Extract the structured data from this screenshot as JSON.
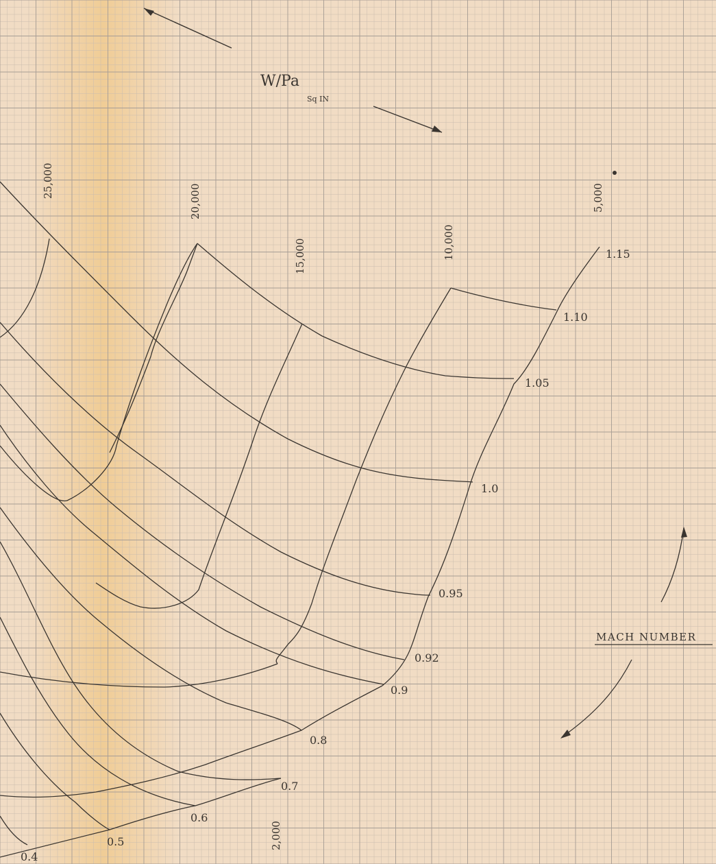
{
  "chart_data": {
    "type": "line",
    "title": "",
    "parameter_label": "W/Pa",
    "parameter_unit": "Sq IN",
    "legend_label": "MACH NUMBER",
    "wpa_values": [
      "25,000",
      "20,000",
      "15,000",
      "10,000",
      "5,000",
      "2,000"
    ],
    "mach_values": [
      "1.15",
      "1.10",
      "1.05",
      "1.0",
      "0.95",
      "0.92",
      "0.9",
      "0.8",
      "0.7",
      "0.6",
      "0.5",
      "0.4"
    ],
    "grid": true,
    "colors": {
      "paper": "#f1dcc4",
      "grid_major": "#a79d95",
      "grid_minor": "#c9bcae",
      "ink": "#3a3530",
      "stain": "#f0c070"
    }
  }
}
